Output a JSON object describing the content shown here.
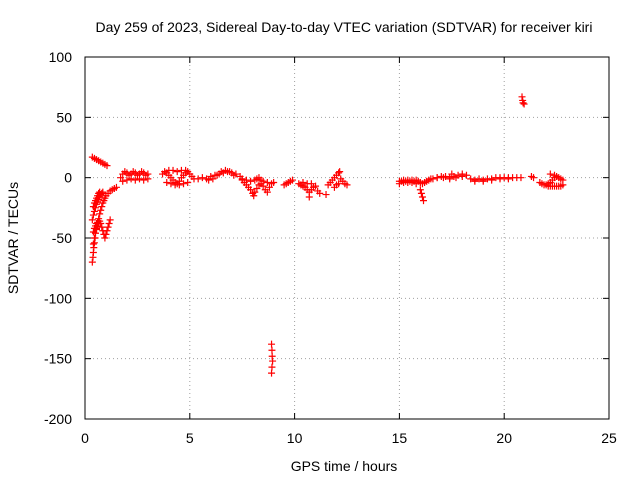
{
  "chart_data": {
    "type": "scatter",
    "title": "Day 259 of 2023, Sidereal Day-to-day VTEC variation (SDTVAR) for receiver kiri",
    "xlabel": "GPS time / hours",
    "ylabel": "SDTVAR / TECUs",
    "xlim": [
      0,
      25
    ],
    "ylim": [
      -200,
      100
    ],
    "x_ticks": [
      "0",
      "5",
      "10",
      "15",
      "20",
      "25"
    ],
    "y_ticks": [
      "100",
      "50",
      "0",
      "-50",
      "-100",
      "-150",
      "-200"
    ],
    "grid": true,
    "legend": "none",
    "marker": "plus",
    "color": "#ff0000",
    "series": [
      {
        "name": "SDTVAR",
        "points": [
          [
            0.35,
            -70
          ],
          [
            0.38,
            -66
          ],
          [
            0.4,
            -62
          ],
          [
            0.42,
            -58
          ],
          [
            0.45,
            -54
          ],
          [
            0.48,
            -50
          ],
          [
            0.5,
            -46
          ],
          [
            0.55,
            -43
          ],
          [
            0.6,
            -40
          ],
          [
            0.65,
            -38
          ],
          [
            0.7,
            -36
          ],
          [
            0.75,
            -38
          ],
          [
            0.8,
            -41
          ],
          [
            0.85,
            -44
          ],
          [
            0.9,
            -47
          ],
          [
            0.95,
            -50
          ],
          [
            1.0,
            -47
          ],
          [
            1.05,
            -44
          ],
          [
            1.1,
            -41
          ],
          [
            1.15,
            -38
          ],
          [
            1.2,
            -35
          ],
          [
            0.4,
            -55
          ],
          [
            0.45,
            -50
          ],
          [
            0.5,
            -46
          ],
          [
            0.55,
            -42
          ],
          [
            0.6,
            -38
          ],
          [
            0.65,
            -34
          ],
          [
            0.7,
            -30
          ],
          [
            0.75,
            -27
          ],
          [
            0.8,
            -24
          ],
          [
            0.85,
            -21
          ],
          [
            0.9,
            -19
          ],
          [
            0.95,
            -17
          ],
          [
            1.0,
            -15
          ],
          [
            1.1,
            -13
          ],
          [
            1.2,
            -11
          ],
          [
            1.3,
            -10
          ],
          [
            1.4,
            -9
          ],
          [
            1.5,
            -8
          ],
          [
            0.35,
            -35
          ],
          [
            0.4,
            -31
          ],
          [
            0.45,
            -28
          ],
          [
            0.5,
            -25
          ],
          [
            0.55,
            -22
          ],
          [
            0.6,
            -20
          ],
          [
            0.65,
            -18
          ],
          [
            0.7,
            -16
          ],
          [
            0.75,
            -14
          ],
          [
            0.8,
            -13
          ],
          [
            0.85,
            -12
          ],
          [
            0.4,
            -24
          ],
          [
            0.45,
            -21
          ],
          [
            0.5,
            -19
          ],
          [
            0.55,
            -17
          ],
          [
            0.6,
            -15
          ],
          [
            0.65,
            -13
          ],
          [
            0.7,
            -12
          ],
          [
            0.4,
            -45
          ],
          [
            0.45,
            -42
          ],
          [
            0.5,
            -40
          ],
          [
            0.55,
            -38
          ],
          [
            0.6,
            -37
          ],
          [
            0.35,
            17
          ],
          [
            0.45,
            16
          ],
          [
            0.55,
            15
          ],
          [
            0.65,
            14
          ],
          [
            0.75,
            13
          ],
          [
            0.85,
            12
          ],
          [
            0.95,
            11
          ],
          [
            1.05,
            10
          ],
          [
            1.7,
            0
          ],
          [
            1.8,
            3
          ],
          [
            1.9,
            5
          ],
          [
            2.0,
            4
          ],
          [
            2.1,
            2
          ],
          [
            2.2,
            3
          ],
          [
            2.3,
            5
          ],
          [
            2.4,
            4
          ],
          [
            2.5,
            2
          ],
          [
            2.6,
            3
          ],
          [
            2.7,
            5
          ],
          [
            2.8,
            4
          ],
          [
            2.9,
            2
          ],
          [
            3.0,
            3
          ],
          [
            1.8,
            -3
          ],
          [
            2.0,
            -2
          ],
          [
            2.2,
            -1
          ],
          [
            2.4,
            -2
          ],
          [
            2.6,
            -1
          ],
          [
            2.8,
            -2
          ],
          [
            3.0,
            -1
          ],
          [
            3.7,
            3
          ],
          [
            3.8,
            5
          ],
          [
            3.9,
            4
          ],
          [
            4.0,
            2
          ],
          [
            4.1,
            0
          ],
          [
            4.2,
            -2
          ],
          [
            4.3,
            -4
          ],
          [
            4.4,
            -5
          ],
          [
            4.5,
            -3
          ],
          [
            4.6,
            0
          ],
          [
            4.7,
            2
          ],
          [
            4.8,
            4
          ],
          [
            4.9,
            5
          ],
          [
            5.0,
            3
          ],
          [
            5.1,
            1
          ],
          [
            5.2,
            -1
          ],
          [
            4.0,
            6
          ],
          [
            4.2,
            6
          ],
          [
            4.4,
            5
          ],
          [
            4.6,
            6
          ],
          [
            4.8,
            6
          ],
          [
            3.9,
            -4
          ],
          [
            4.1,
            -5
          ],
          [
            4.3,
            -6
          ],
          [
            4.5,
            -6
          ],
          [
            4.7,
            -5
          ],
          [
            4.9,
            -4
          ],
          [
            5.4,
            -1
          ],
          [
            5.6,
            0
          ],
          [
            5.8,
            -1
          ],
          [
            6.0,
            1
          ],
          [
            6.2,
            2
          ],
          [
            6.4,
            3
          ],
          [
            6.6,
            4
          ],
          [
            6.8,
            5
          ],
          [
            7.0,
            4
          ],
          [
            7.2,
            3
          ],
          [
            7.4,
            1
          ],
          [
            7.5,
            -1
          ],
          [
            5.9,
            -2
          ],
          [
            6.1,
            -1
          ],
          [
            6.3,
            2
          ],
          [
            6.5,
            5
          ],
          [
            6.7,
            6
          ],
          [
            6.9,
            5
          ],
          [
            7.1,
            2
          ],
          [
            7.5,
            -2
          ],
          [
            7.6,
            -4
          ],
          [
            7.7,
            -6
          ],
          [
            7.8,
            -8
          ],
          [
            7.9,
            -10
          ],
          [
            8.0,
            -13
          ],
          [
            8.05,
            -15
          ],
          [
            8.1,
            -12
          ],
          [
            8.2,
            -9
          ],
          [
            8.3,
            -6
          ],
          [
            8.4,
            -5
          ],
          [
            8.5,
            -7
          ],
          [
            8.6,
            -10
          ],
          [
            8.7,
            -12
          ],
          [
            8.8,
            -8
          ],
          [
            8.9,
            -5
          ],
          [
            9.0,
            -4
          ],
          [
            7.7,
            -2
          ],
          [
            7.9,
            -3
          ],
          [
            8.1,
            -2
          ],
          [
            8.3,
            0
          ],
          [
            8.5,
            -3
          ],
          [
            8.7,
            -4
          ],
          [
            8.2,
            -1
          ],
          [
            8.4,
            -2
          ],
          [
            8.9,
            -138
          ],
          [
            8.92,
            -143
          ],
          [
            8.93,
            -148
          ],
          [
            8.95,
            -152
          ],
          [
            8.92,
            -157
          ],
          [
            8.9,
            -162
          ],
          [
            9.5,
            -6
          ],
          [
            9.6,
            -5
          ],
          [
            9.7,
            -4
          ],
          [
            9.8,
            -3
          ],
          [
            9.9,
            -2
          ],
          [
            10.2,
            -5
          ],
          [
            10.3,
            -6
          ],
          [
            10.4,
            -7
          ],
          [
            10.5,
            -8
          ],
          [
            10.6,
            -10
          ],
          [
            10.7,
            -12
          ],
          [
            10.8,
            -10
          ],
          [
            10.9,
            -8
          ],
          [
            11.0,
            -7
          ],
          [
            11.1,
            -11
          ],
          [
            11.2,
            -13
          ],
          [
            10.4,
            -4
          ],
          [
            10.6,
            -5
          ],
          [
            10.8,
            -5
          ],
          [
            10.7,
            -16
          ],
          [
            11.5,
            -14
          ],
          [
            11.6,
            -6
          ],
          [
            11.7,
            -4
          ],
          [
            11.8,
            -2
          ],
          [
            11.9,
            0
          ],
          [
            12.0,
            2
          ],
          [
            12.1,
            4
          ],
          [
            12.15,
            5
          ],
          [
            12.2,
            -1
          ],
          [
            12.3,
            -3
          ],
          [
            12.4,
            -5
          ],
          [
            12.5,
            -6
          ],
          [
            11.9,
            -8
          ],
          [
            12.0,
            -6
          ],
          [
            12.1,
            -5
          ],
          [
            15.0,
            -3
          ],
          [
            15.1,
            -3
          ],
          [
            15.2,
            -2
          ],
          [
            15.3,
            -3
          ],
          [
            15.4,
            -2
          ],
          [
            15.5,
            -3
          ],
          [
            15.6,
            -2
          ],
          [
            15.7,
            -3
          ],
          [
            15.8,
            -2
          ],
          [
            15.9,
            -3
          ],
          [
            16.0,
            -4
          ],
          [
            16.1,
            -5
          ],
          [
            16.2,
            -4
          ],
          [
            16.3,
            -3
          ],
          [
            15.0,
            -5
          ],
          [
            15.2,
            -4
          ],
          [
            15.4,
            -4
          ],
          [
            15.6,
            -4
          ],
          [
            15.8,
            -5
          ],
          [
            16.0,
            -10
          ],
          [
            16.05,
            -13
          ],
          [
            16.1,
            -16
          ],
          [
            16.15,
            -19
          ],
          [
            16.4,
            -2
          ],
          [
            16.6,
            -1
          ],
          [
            16.8,
            0
          ],
          [
            17.0,
            1
          ],
          [
            17.2,
            1
          ],
          [
            17.4,
            0
          ],
          [
            17.6,
            1
          ],
          [
            17.8,
            2
          ],
          [
            18.0,
            3
          ],
          [
            18.2,
            2
          ],
          [
            16.5,
            -1
          ],
          [
            16.8,
            0
          ],
          [
            17.1,
            0
          ],
          [
            17.4,
            -1
          ],
          [
            17.7,
            0
          ],
          [
            18.0,
            1
          ],
          [
            17.5,
            3
          ],
          [
            18.4,
            -1
          ],
          [
            18.6,
            -2
          ],
          [
            18.8,
            -1
          ],
          [
            19.0,
            -2
          ],
          [
            19.2,
            -1
          ],
          [
            19.4,
            -1
          ],
          [
            19.6,
            0
          ],
          [
            19.8,
            0
          ],
          [
            20.0,
            0
          ],
          [
            20.2,
            0
          ],
          [
            20.4,
            0
          ],
          [
            20.6,
            0
          ],
          [
            20.8,
            0
          ],
          [
            18.6,
            -3
          ],
          [
            19.0,
            -3
          ],
          [
            19.4,
            -2
          ],
          [
            19.8,
            -1
          ],
          [
            20.2,
            -1
          ],
          [
            21.3,
            1
          ],
          [
            21.4,
            0
          ],
          [
            20.85,
            67
          ],
          [
            20.88,
            64
          ],
          [
            20.9,
            62
          ],
          [
            20.95,
            61
          ],
          [
            21.7,
            -4
          ],
          [
            21.8,
            -5
          ],
          [
            21.9,
            -6
          ],
          [
            22.0,
            -6
          ],
          [
            22.1,
            -7
          ],
          [
            22.2,
            -7
          ],
          [
            22.3,
            -7
          ],
          [
            22.4,
            -7
          ],
          [
            22.5,
            -7
          ],
          [
            22.6,
            -7
          ],
          [
            22.7,
            -7
          ],
          [
            22.8,
            -6
          ],
          [
            22.1,
            -5
          ],
          [
            22.2,
            -4
          ],
          [
            22.3,
            -2
          ],
          [
            22.4,
            0
          ],
          [
            22.5,
            1
          ],
          [
            22.6,
            0
          ],
          [
            22.7,
            -1
          ],
          [
            22.8,
            -2
          ],
          [
            22.2,
            3
          ],
          [
            22.4,
            2
          ]
        ]
      }
    ]
  }
}
